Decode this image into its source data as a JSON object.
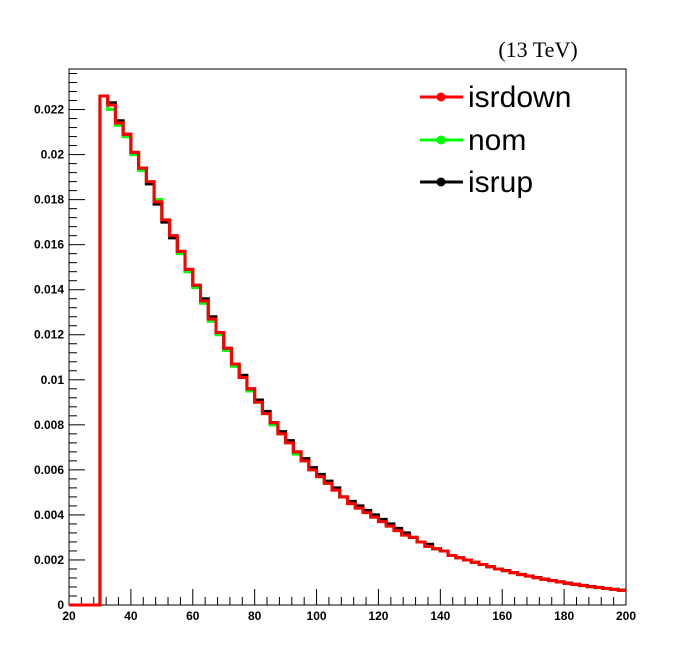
{
  "chart_data": {
    "type": "line",
    "annotation": "(13 TeV)",
    "xlim": [
      20,
      200
    ],
    "ylim": [
      0,
      0.0238
    ],
    "x_ticks": [
      20,
      40,
      60,
      80,
      100,
      120,
      140,
      160,
      180,
      200
    ],
    "y_ticks": [
      0,
      0.002,
      0.004,
      0.006,
      0.008,
      0.01,
      0.012,
      0.014,
      0.016,
      0.018,
      0.02,
      0.022
    ],
    "x_tick_labels": [
      "20",
      "40",
      "60",
      "80",
      "100",
      "120",
      "140",
      "160",
      "180",
      "200"
    ],
    "y_tick_labels": [
      "0",
      "0.002",
      "0.004",
      "0.006",
      "0.008",
      "0.01",
      "0.012",
      "0.014",
      "0.016",
      "0.018",
      "0.02",
      "0.022"
    ],
    "bin_edges": [
      20,
      22.5,
      25,
      27.5,
      30,
      32.5,
      35,
      37.5,
      40,
      42.5,
      45,
      47.5,
      50,
      52.5,
      55,
      57.5,
      60,
      62.5,
      65,
      67.5,
      70,
      72.5,
      75,
      77.5,
      80,
      82.5,
      85,
      87.5,
      90,
      92.5,
      95,
      97.5,
      100,
      102.5,
      105,
      107.5,
      110,
      112.5,
      115,
      117.5,
      120,
      122.5,
      125,
      127.5,
      130,
      132.5,
      135,
      137.5,
      140,
      142.5,
      145,
      147.5,
      150,
      152.5,
      155,
      157.5,
      160,
      162.5,
      165,
      167.5,
      170,
      172.5,
      175,
      177.5,
      180,
      182.5,
      185,
      187.5,
      190,
      192.5,
      195,
      197.5,
      200
    ],
    "legend_position": "top-right",
    "series": [
      {
        "name": "isrdown",
        "color": "#ff0000",
        "values": [
          0,
          0,
          0,
          0,
          0.0226,
          0.0222,
          0.0214,
          0.0209,
          0.0201,
          0.0194,
          0.0188,
          0.0179,
          0.0171,
          0.0164,
          0.0157,
          0.0149,
          0.0142,
          0.0135,
          0.0127,
          0.0121,
          0.0114,
          0.0107,
          0.0101,
          0.0096,
          0.009,
          0.0085,
          0.0081,
          0.0076,
          0.0072,
          0.0068,
          0.0064,
          0.006,
          0.0057,
          0.0054,
          0.0051,
          0.0048,
          0.0045,
          0.0043,
          0.0041,
          0.0039,
          0.0037,
          0.0035,
          0.0033,
          0.0031,
          0.003,
          0.0028,
          0.0026,
          0.0025,
          0.0024,
          0.0022,
          0.0021,
          0.002,
          0.0019,
          0.0018,
          0.0017,
          0.0016,
          0.00152,
          0.00143,
          0.00135,
          0.00128,
          0.00121,
          0.00114,
          0.00108,
          0.00102,
          0.00096,
          0.00091,
          0.00086,
          0.00081,
          0.00077,
          0.00073,
          0.00069,
          0.00065
        ]
      },
      {
        "name": "nom",
        "color": "#00ff00",
        "values": [
          0,
          0,
          0,
          0,
          0.0226,
          0.022,
          0.0213,
          0.0208,
          0.02,
          0.0193,
          0.0187,
          0.018,
          0.0171,
          0.0163,
          0.0156,
          0.0148,
          0.0141,
          0.0134,
          0.0126,
          0.012,
          0.0113,
          0.0106,
          0.0101,
          0.0095,
          0.009,
          0.0085,
          0.008,
          0.0076,
          0.0072,
          0.0067,
          0.0064,
          0.006,
          0.0057,
          0.0054,
          0.0051,
          0.0048,
          0.0045,
          0.0043,
          0.0041,
          0.0039,
          0.0037,
          0.0035,
          0.0033,
          0.0031,
          0.003,
          0.0028,
          0.0026,
          0.0025,
          0.0024,
          0.0022,
          0.0021,
          0.002,
          0.0019,
          0.0018,
          0.0017,
          0.0016,
          0.00152,
          0.00143,
          0.00135,
          0.00128,
          0.00121,
          0.00114,
          0.00108,
          0.00102,
          0.00096,
          0.00091,
          0.00086,
          0.00081,
          0.00077,
          0.00073,
          0.00069,
          0.00065
        ]
      },
      {
        "name": "isrup",
        "color": "#000000",
        "values": [
          0,
          0,
          0,
          0,
          0.0226,
          0.0223,
          0.0215,
          0.0209,
          0.0201,
          0.0194,
          0.0187,
          0.0178,
          0.017,
          0.0163,
          0.0157,
          0.0149,
          0.0142,
          0.0136,
          0.0128,
          0.0121,
          0.0114,
          0.0107,
          0.0102,
          0.0096,
          0.0091,
          0.0086,
          0.0081,
          0.0077,
          0.0073,
          0.0068,
          0.0065,
          0.0061,
          0.0058,
          0.0055,
          0.0052,
          0.0048,
          0.0046,
          0.0044,
          0.0042,
          0.004,
          0.0038,
          0.0036,
          0.0034,
          0.0032,
          0.003,
          0.0028,
          0.0027,
          0.0025,
          0.0024,
          0.0022,
          0.0021,
          0.002,
          0.0019,
          0.0018,
          0.0017,
          0.0016,
          0.00153,
          0.00144,
          0.00136,
          0.00129,
          0.00122,
          0.00115,
          0.00109,
          0.00103,
          0.00097,
          0.00092,
          0.00087,
          0.00082,
          0.00078,
          0.00074,
          0.0007,
          0.00066
        ]
      }
    ],
    "legend_order": [
      "isrdown",
      "nom",
      "isrup"
    ]
  }
}
